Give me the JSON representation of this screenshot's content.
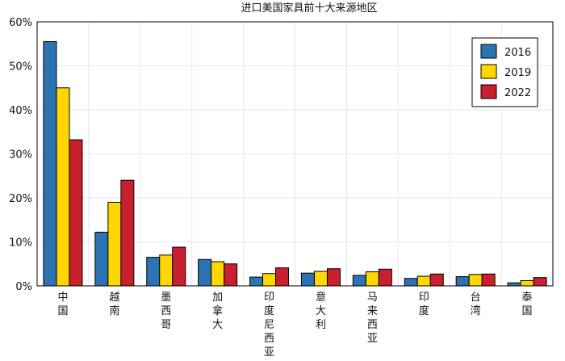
{
  "chart_data": {
    "type": "bar",
    "title": "进口美国家具前十大来源地区",
    "categories": [
      "中国",
      "越南",
      "墨西哥",
      "加拿大",
      "印度尼西亚",
      "意大利",
      "马来西亚",
      "印度",
      "台湾",
      "泰国"
    ],
    "series": [
      {
        "name": "2016",
        "color": "#2c73b4",
        "values": [
          55.5,
          12.2,
          6.5,
          6.0,
          2.0,
          2.9,
          2.4,
          1.7,
          2.1,
          0.7
        ]
      },
      {
        "name": "2019",
        "color": "#ffd700",
        "values": [
          45.0,
          19.0,
          7.0,
          5.5,
          2.8,
          3.3,
          3.2,
          2.2,
          2.6,
          1.2
        ]
      },
      {
        "name": "2022",
        "color": "#c8202f",
        "values": [
          33.2,
          24.0,
          8.8,
          5.0,
          4.1,
          3.9,
          3.8,
          2.7,
          2.7,
          1.9
        ]
      }
    ],
    "yticks": [
      "0%",
      "10%",
      "20%",
      "30%",
      "40%",
      "50%",
      "60%"
    ],
    "ylim": [
      0,
      60
    ],
    "grid": true,
    "legend_position": "top-right",
    "xlabel": "",
    "ylabel": ""
  }
}
